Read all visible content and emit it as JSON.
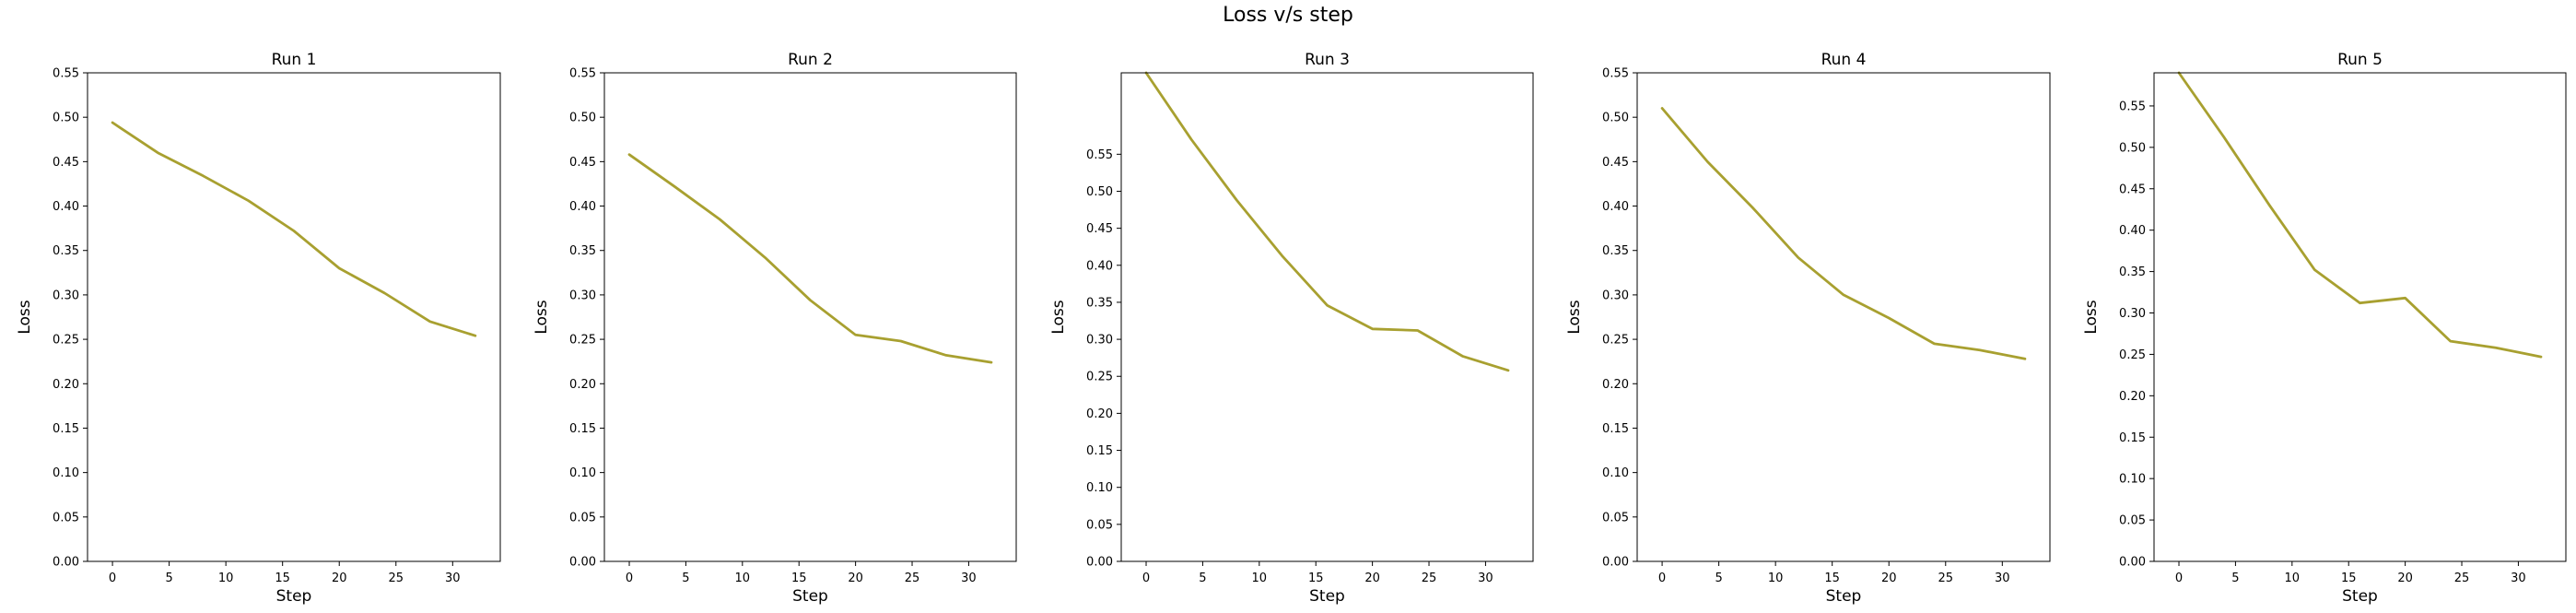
{
  "figure": {
    "title": "Loss v/s step"
  },
  "chart_data": [
    {
      "type": "line",
      "title": "Run 1",
      "xlabel": "Step",
      "ylabel": "Loss",
      "xlim": [
        -2.2,
        34.2
      ],
      "ylim": [
        0,
        0.55
      ],
      "xticks": [
        0,
        5,
        10,
        15,
        20,
        25,
        30
      ],
      "yticks": [
        0.0,
        0.05,
        0.1,
        0.15,
        0.2,
        0.25,
        0.3,
        0.35,
        0.4,
        0.45,
        0.5,
        0.55
      ],
      "ytick_labels": [
        "0.00",
        "0.05",
        "0.10",
        "0.15",
        "0.20",
        "0.25",
        "0.30",
        "0.35",
        "0.40",
        "0.45",
        "0.50",
        "0.55"
      ],
      "grid": false,
      "color": "#a8a030",
      "x": [
        0,
        4,
        8,
        12,
        16,
        20,
        24,
        28,
        32
      ],
      "y": [
        0.494,
        0.46,
        0.434,
        0.406,
        0.372,
        0.33,
        0.302,
        0.27,
        0.254
      ]
    },
    {
      "type": "line",
      "title": "Run 2",
      "xlabel": "Step",
      "ylabel": "Loss",
      "xlim": [
        -2.2,
        34.2
      ],
      "ylim": [
        0,
        0.55
      ],
      "xticks": [
        0,
        5,
        10,
        15,
        20,
        25,
        30
      ],
      "yticks": [
        0.0,
        0.05,
        0.1,
        0.15,
        0.2,
        0.25,
        0.3,
        0.35,
        0.4,
        0.45,
        0.5,
        0.55
      ],
      "ytick_labels": [
        "0.00",
        "0.05",
        "0.10",
        "0.15",
        "0.20",
        "0.25",
        "0.30",
        "0.35",
        "0.40",
        "0.45",
        "0.50",
        "0.55"
      ],
      "grid": false,
      "color": "#a8a030",
      "x": [
        0,
        4,
        8,
        12,
        16,
        20,
        24,
        28,
        32
      ],
      "y": [
        0.458,
        0.422,
        0.385,
        0.342,
        0.294,
        0.255,
        0.248,
        0.232,
        0.224
      ]
    },
    {
      "type": "line",
      "title": "Run 3",
      "xlabel": "Step",
      "ylabel": "Loss",
      "xlim": [
        -2.2,
        34.2
      ],
      "ylim": [
        0,
        0.66
      ],
      "xticks": [
        0,
        5,
        10,
        15,
        20,
        25,
        30
      ],
      "yticks": [
        0.0,
        0.05,
        0.1,
        0.15,
        0.2,
        0.25,
        0.3,
        0.35,
        0.4,
        0.45,
        0.5,
        0.55
      ],
      "ytick_labels": [
        "0.00",
        "0.05",
        "0.10",
        "0.15",
        "0.20",
        "0.25",
        "0.30",
        "0.35",
        "0.40",
        "0.45",
        "0.50",
        "0.55"
      ],
      "grid": false,
      "color": "#a8a030",
      "x": [
        0,
        4,
        8,
        12,
        16,
        20,
        24,
        28,
        32
      ],
      "y": [
        0.66,
        0.57,
        0.488,
        0.413,
        0.346,
        0.314,
        0.312,
        0.277,
        0.258
      ]
    },
    {
      "type": "line",
      "title": "Run 4",
      "xlabel": "Step",
      "ylabel": "Loss",
      "xlim": [
        -2.2,
        34.2
      ],
      "ylim": [
        0,
        0.55
      ],
      "xticks": [
        0,
        5,
        10,
        15,
        20,
        25,
        30
      ],
      "yticks": [
        0.0,
        0.05,
        0.1,
        0.15,
        0.2,
        0.25,
        0.3,
        0.35,
        0.4,
        0.45,
        0.5,
        0.55
      ],
      "ytick_labels": [
        "0.00",
        "0.05",
        "0.10",
        "0.15",
        "0.20",
        "0.25",
        "0.30",
        "0.35",
        "0.40",
        "0.45",
        "0.50",
        "0.55"
      ],
      "grid": false,
      "color": "#a8a030",
      "x": [
        0,
        4,
        8,
        12,
        16,
        20,
        24,
        28,
        32
      ],
      "y": [
        0.51,
        0.45,
        0.398,
        0.342,
        0.3,
        0.274,
        0.245,
        0.238,
        0.228
      ]
    },
    {
      "type": "line",
      "title": "Run 5",
      "xlabel": "Step",
      "ylabel": "Loss",
      "xlim": [
        -2.2,
        34.2
      ],
      "ylim": [
        0,
        0.59
      ],
      "xticks": [
        0,
        5,
        10,
        15,
        20,
        25,
        30
      ],
      "yticks": [
        0.0,
        0.05,
        0.1,
        0.15,
        0.2,
        0.25,
        0.3,
        0.35,
        0.4,
        0.45,
        0.5,
        0.55
      ],
      "ytick_labels": [
        "0.00",
        "0.05",
        "0.10",
        "0.15",
        "0.20",
        "0.25",
        "0.30",
        "0.35",
        "0.40",
        "0.45",
        "0.50",
        "0.55"
      ],
      "grid": false,
      "color": "#a8a030",
      "x": [
        0,
        4,
        8,
        12,
        16,
        20,
        24,
        28,
        32
      ],
      "y": [
        0.59,
        0.512,
        0.43,
        0.352,
        0.312,
        0.318,
        0.266,
        0.258,
        0.247
      ]
    }
  ]
}
